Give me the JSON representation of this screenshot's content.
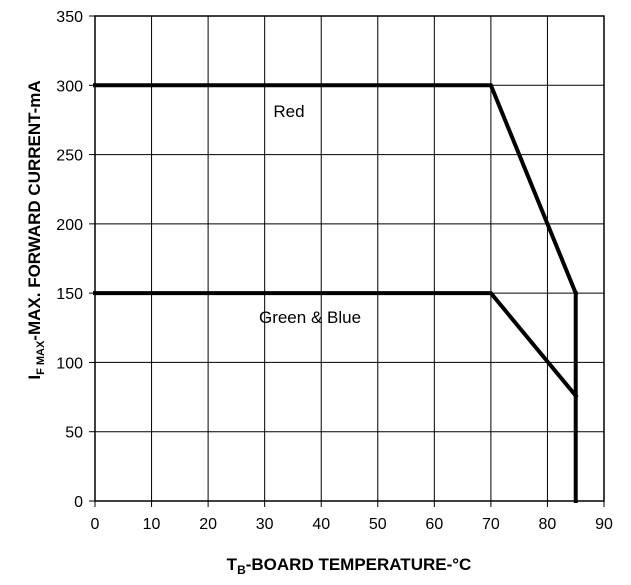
{
  "chart_data": {
    "type": "line",
    "title": "",
    "xlabel": {
      "main": "T",
      "sub": "B",
      "rest": "-BOARD TEMPERATURE-°C"
    },
    "ylabel": {
      "main": "I",
      "sub": "F MAX",
      "rest": "-MAX. FORWARD CURRENT-mA"
    },
    "xlim": [
      0,
      90
    ],
    "ylim": [
      0,
      350
    ],
    "xticks": [
      0,
      10,
      20,
      30,
      40,
      50,
      60,
      70,
      80,
      90
    ],
    "yticks": [
      0,
      50,
      100,
      150,
      200,
      250,
      300,
      350
    ],
    "grid": true,
    "legend": "none",
    "series": [
      {
        "name": "Red",
        "x": [
          0,
          70,
          85
        ],
        "y": [
          300,
          300,
          150
        ],
        "color": "#000000"
      },
      {
        "name": "Green & Blue",
        "x": [
          0,
          70,
          85
        ],
        "y": [
          150,
          150,
          76
        ],
        "color": "#000000"
      }
    ],
    "vertical_line": {
      "x": 85,
      "y": [
        0,
        150
      ]
    }
  }
}
